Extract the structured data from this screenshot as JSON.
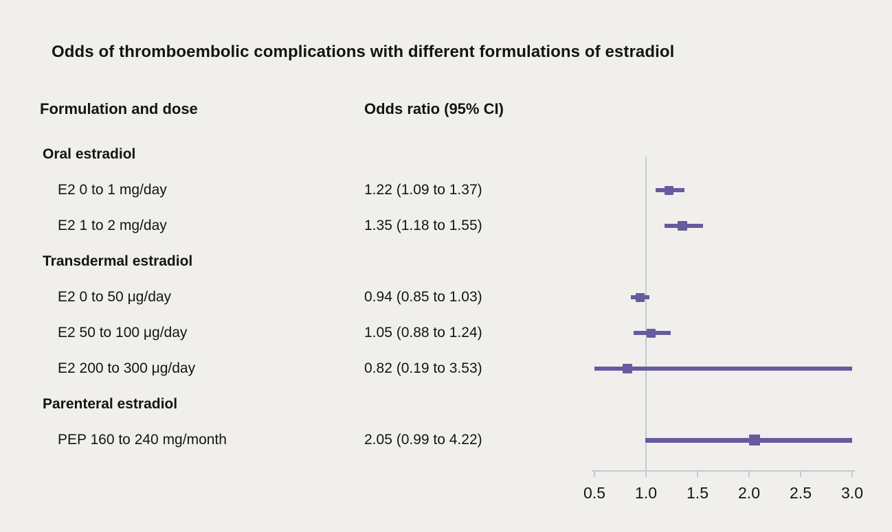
{
  "title": "Odds of thromboembolic complications with different formulations of estradiol",
  "columns": {
    "label": "Formulation and dose",
    "or": "Odds ratio (95% CI)"
  },
  "chart_data": {
    "type": "forest",
    "title": "Odds of thromboembolic complications with different formulations of estradiol",
    "xlim": [
      0.5,
      3.0
    ],
    "reference_line": 1.0,
    "legend_position": "none",
    "grid": false,
    "ticks": [
      {
        "value": 0.5,
        "label": "0.5"
      },
      {
        "value": 1.0,
        "label": "1.0"
      },
      {
        "value": 1.5,
        "label": "1.5"
      },
      {
        "value": 2.0,
        "label": "2.0"
      },
      {
        "value": 2.5,
        "label": "2.5"
      },
      {
        "value": 3.0,
        "label": "3.0"
      }
    ],
    "rows": [
      {
        "kind": "group",
        "label": "Oral estradiol"
      },
      {
        "kind": "item",
        "label": "E2 0 to 1 mg/day",
        "or_text": "1.22 (1.09 to 1.37)",
        "or": 1.22,
        "ci_low": 1.09,
        "ci_high": 1.37,
        "marker": 13,
        "line": 6
      },
      {
        "kind": "item",
        "label": "E2 1 to 2 mg/day",
        "or_text": "1.35 (1.18 to 1.55)",
        "or": 1.35,
        "ci_low": 1.18,
        "ci_high": 1.55,
        "marker": 14,
        "line": 6
      },
      {
        "kind": "group",
        "label": "Transdermal estradiol"
      },
      {
        "kind": "item",
        "label": "E2 0 to 50 μg/day",
        "or_text": "0.94 (0.85 to 1.03)",
        "or": 0.94,
        "ci_low": 0.85,
        "ci_high": 1.03,
        "marker": 13,
        "line": 6
      },
      {
        "kind": "item",
        "label": "E2 50 to 100 μg/day",
        "or_text": "1.05 (0.88 to 1.24)",
        "or": 1.05,
        "ci_low": 0.88,
        "ci_high": 1.24,
        "marker": 13,
        "line": 6
      },
      {
        "kind": "item",
        "label": "E2 200 to 300 μg/day",
        "or_text": "0.82 (0.19 to 3.53)",
        "or": 0.82,
        "ci_low": 0.19,
        "ci_high": 3.53,
        "marker": 14,
        "line": 6
      },
      {
        "kind": "group",
        "label": "Parenteral estradiol"
      },
      {
        "kind": "item",
        "label": "PEP 160 to 240 mg/month",
        "or_text": "2.05 (0.99 to 4.22)",
        "or": 2.05,
        "ci_low": 0.99,
        "ci_high": 4.22,
        "marker": 16,
        "line": 7
      }
    ],
    "colors": {
      "marker": "#675a9f",
      "ci_line": "#675a9f",
      "axis": "#c9c6d8",
      "reference_line": "#c9c6d8",
      "background": "#f0efeb",
      "text": "#141414"
    }
  }
}
